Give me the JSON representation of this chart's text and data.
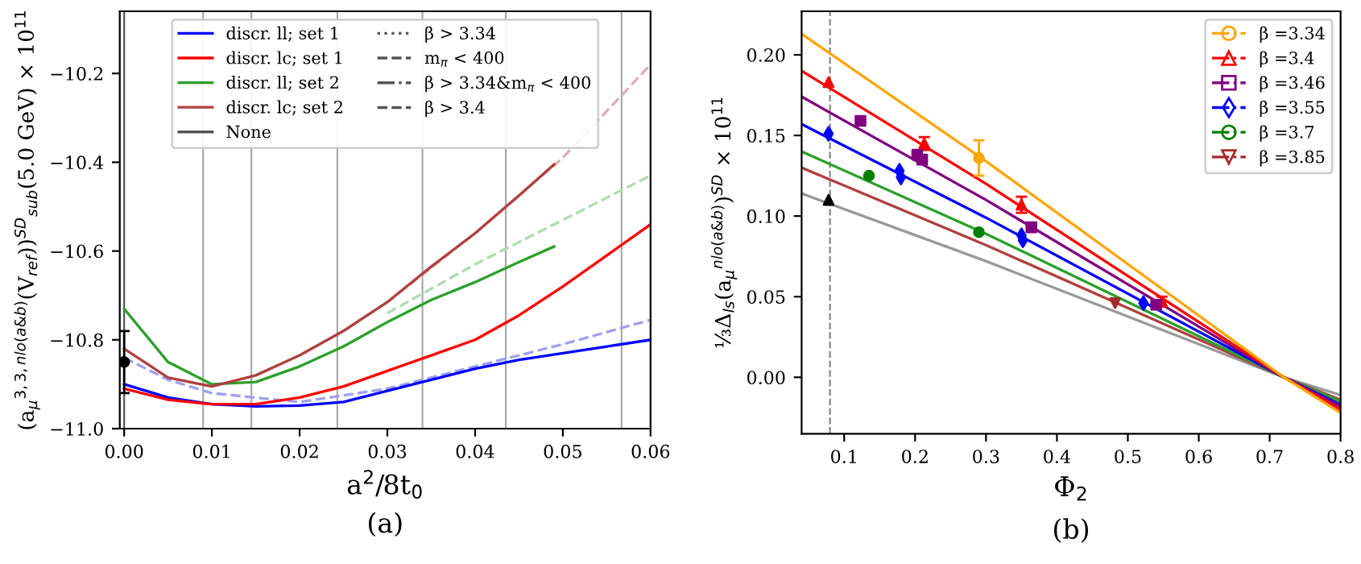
{
  "chart_data": [
    {
      "type": "line",
      "xlabel": "a$^{2}$/8t$_{0}$",
      "ylabel": "(a$_{μ}$$^{3,3,nlo(a&b)}$(V$_{ref}$))$^{SD}$$_{sub}$(5.0 GeV) × 10$^{11}$",
      "annotations": [
        "(a)"
      ],
      "xlim": [
        -0.0005,
        0.06
      ],
      "ylim": [
        -11.0,
        -10.06
      ],
      "xticks": [
        {
          "value": 0,
          "label": "0.00"
        },
        {
          "value": 0.01,
          "label": "0.01"
        },
        {
          "value": 0.02,
          "label": "0.02"
        },
        {
          "value": 0.03,
          "label": "0.03"
        },
        {
          "value": 0.04,
          "label": "0.04"
        },
        {
          "value": 0.05,
          "label": "0.05"
        },
        {
          "value": 0.06,
          "label": "0.06"
        }
      ],
      "yticks": [
        {
          "value": -11.0,
          "label": "−11.0"
        },
        {
          "value": -10.8,
          "label": "−10.8"
        },
        {
          "value": -10.6,
          "label": "−10.6"
        },
        {
          "value": -10.4,
          "label": "−10.4"
        },
        {
          "value": -10.2,
          "label": "−10.2"
        }
      ],
      "grid": false,
      "legend": "top",
      "ref_lines": [
        {
          "axis": "x",
          "value": 0,
          "color": "#555555"
        },
        {
          "axis": "x",
          "value": 0.009,
          "color": "#aaaaaa"
        },
        {
          "axis": "x",
          "value": 0.0145,
          "color": "#aaaaaa"
        },
        {
          "axis": "x",
          "value": 0.0243,
          "color": "#aaaaaa"
        },
        {
          "axis": "x",
          "value": 0.034,
          "color": "#aaaaaa"
        },
        {
          "axis": "x",
          "value": 0.0435,
          "color": "#aaaaaa"
        },
        {
          "axis": "x",
          "value": 0.0567,
          "color": "#aaaaaa"
        }
      ],
      "series": [
        {
          "type": "line",
          "color": "#a0a0f0",
          "line_style": "dashed",
          "x": [
            0,
            0.005,
            0.01,
            0.02,
            0.03,
            0.04,
            0.05,
            0.06
          ],
          "values": [
            -10.84,
            -10.89,
            -10.92,
            -10.94,
            -10.91,
            -10.86,
            -10.81,
            -10.755
          ]
        },
        {
          "type": "line",
          "color": "#b0dcb0",
          "line_style": "dashed",
          "x": [
            0.03,
            0.04,
            0.05,
            0.06
          ],
          "values": [
            -10.74,
            -10.63,
            -10.53,
            -10.43
          ]
        },
        {
          "type": "line",
          "color": "#dcb0b0",
          "line_style": "dashed",
          "x": [
            0.03,
            0.04,
            0.05,
            0.06
          ],
          "values": [
            -10.715,
            -10.56,
            -10.39,
            -10.18
          ]
        },
        {
          "type": "line",
          "name": "discr. ll; set 1",
          "color": "#0000ff",
          "line_style": "solid",
          "x": [
            0,
            0.005,
            0.01,
            0.015,
            0.02,
            0.025,
            0.03,
            0.035,
            0.04,
            0.045,
            0.05,
            0.055,
            0.06
          ],
          "values": [
            -10.9,
            -10.93,
            -10.945,
            -10.95,
            -10.948,
            -10.94,
            -10.915,
            -10.89,
            -10.865,
            -10.845,
            -10.83,
            -10.815,
            -10.8
          ]
        },
        {
          "type": "line",
          "name": "discr. lc; set 1",
          "color": "#ff0000",
          "line_style": "solid",
          "x": [
            0,
            0.005,
            0.01,
            0.015,
            0.02,
            0.025,
            0.03,
            0.035,
            0.04,
            0.045,
            0.05,
            0.055,
            0.06
          ],
          "values": [
            -10.91,
            -10.935,
            -10.945,
            -10.945,
            -10.93,
            -10.905,
            -10.87,
            -10.835,
            -10.8,
            -10.745,
            -10.68,
            -10.61,
            -10.54
          ]
        },
        {
          "type": "line",
          "name": "discr. ll; set 2",
          "color": "#2ca02c",
          "line_style": "solid",
          "x": [
            0,
            0.005,
            0.01,
            0.015,
            0.02,
            0.025,
            0.03,
            0.035,
            0.04,
            0.045,
            0.049
          ],
          "values": [
            -10.73,
            -10.85,
            -10.9,
            -10.895,
            -10.86,
            -10.815,
            -10.76,
            -10.71,
            -10.67,
            -10.625,
            -10.59
          ]
        },
        {
          "type": "line",
          "name": "discr. lc; set 2",
          "color": "#b04040",
          "line_style": "solid",
          "x": [
            0,
            0.005,
            0.01,
            0.015,
            0.02,
            0.025,
            0.03,
            0.035,
            0.04,
            0.045,
            0.049
          ],
          "values": [
            -10.82,
            -10.885,
            -10.905,
            -10.88,
            -10.835,
            -10.78,
            -10.715,
            -10.635,
            -10.56,
            -10.475,
            -10.405
          ]
        },
        {
          "name": "None",
          "color": "#555555",
          "line_style": "solid"
        },
        {
          "name": "β > 3.34",
          "color": "#555555",
          "line_style": "dotted"
        },
        {
          "name": "m$_{π}$ < 400",
          "color": "#555555",
          "line_style": "dashed"
        },
        {
          "name": "β > 3.34&m$_{π}$ < 400",
          "color": "#555555",
          "line_style": "dashdot"
        },
        {
          "name": "β > 3.4",
          "color": "#555555",
          "line_style": "dashed"
        },
        {
          "type": "scatter",
          "color": "#000000",
          "marker": "circle",
          "x": [
            0
          ],
          "values": [
            -10.85
          ],
          "errors": [
            [
              -10.92,
              -10.78
            ]
          ]
        }
      ]
    },
    {
      "type": "line",
      "xlabel": "Φ$_{2}$",
      "ylabel": "⅓Δ$_{ls}$(a$_{μ}$$^{nlo(a&b)}$)$^{SD}$ × 10$^{11}$",
      "annotations": [
        "(b)"
      ],
      "xlim": [
        0.04,
        0.8
      ],
      "ylim": [
        -0.035,
        0.227
      ],
      "xticks": [
        0.1,
        0.2,
        0.3,
        0.4,
        0.5,
        0.6,
        0.7,
        0.8
      ],
      "yticks": [
        {
          "value": 0,
          "label": "0.00"
        },
        {
          "value": 0.05,
          "label": "0.05"
        },
        {
          "value": 0.1,
          "label": "0.10"
        },
        {
          "value": 0.15,
          "label": "0.15"
        },
        {
          "value": 0.2,
          "label": "0.20"
        }
      ],
      "grid": false,
      "legend": "top right",
      "ref_lines": [
        {
          "axis": "x",
          "value": 0.08,
          "color": "#888888",
          "line_style": "dashed"
        }
      ],
      "series": [
        {
          "type": "line",
          "color": "#999999",
          "line_style": "solid",
          "x": [
            0.04,
            0.3,
            0.72,
            0.8
          ],
          "values": [
            0.114,
            0.072,
            0.0,
            -0.011
          ]
        },
        {
          "type": "line",
          "color": "#b04040",
          "line_style": "solid",
          "x": [
            0.04,
            0.3,
            0.72,
            0.8
          ],
          "values": [
            0.13,
            0.082,
            0.0,
            -0.014
          ]
        },
        {
          "type": "line",
          "color": "#2ca02c",
          "line_style": "solid",
          "x": [
            0.04,
            0.3,
            0.72,
            0.8
          ],
          "values": [
            0.14,
            0.089,
            0.0,
            -0.015
          ]
        },
        {
          "type": "line",
          "color": "#0000ff",
          "line_style": "solid",
          "x": [
            0.04,
            0.3,
            0.72,
            0.8
          ],
          "values": [
            0.157,
            0.099,
            0.0,
            -0.017
          ]
        },
        {
          "type": "line",
          "color": "#800080",
          "line_style": "solid",
          "x": [
            0.04,
            0.3,
            0.72,
            0.8
          ],
          "values": [
            0.174,
            0.11,
            0.0,
            -0.018
          ]
        },
        {
          "type": "line",
          "color": "#ff0000",
          "line_style": "solid",
          "x": [
            0.04,
            0.3,
            0.72,
            0.8
          ],
          "values": [
            0.19,
            0.12,
            0.0,
            -0.02
          ]
        },
        {
          "type": "line",
          "color": "#ffa500",
          "line_style": "solid",
          "x": [
            0.04,
            0.3,
            0.72,
            0.8
          ],
          "values": [
            0.213,
            0.134,
            0.0,
            -0.022
          ]
        },
        {
          "type": "scatter",
          "name": "β =3.34",
          "color": "#ffa500",
          "marker": "circle",
          "line_style": "dashdot",
          "x": [
            0.29
          ],
          "values": [
            0.136
          ],
          "errors": [
            0.011
          ]
        },
        {
          "type": "scatter",
          "name": "β =3.4",
          "color": "#ff0000",
          "marker": "triangle",
          "line_style": "dashdot",
          "x": [
            0.078,
            0.213,
            0.35,
            0.548
          ],
          "values": [
            0.183,
            0.145,
            0.107,
            0.047
          ],
          "errors": [
            null,
            0.004,
            0.005,
            0.003
          ]
        },
        {
          "type": "scatter",
          "name": "β =3.46",
          "color": "#800080",
          "marker": "square",
          "line_style": "dashdot",
          "x": [
            0.123,
            0.203,
            0.21,
            0.364,
            0.54
          ],
          "values": [
            0.159,
            0.138,
            0.135,
            0.093,
            0.045
          ]
        },
        {
          "type": "scatter",
          "name": "β =3.55",
          "color": "#0000ff",
          "marker": "diamond",
          "line_style": "dashdot",
          "x": [
            0.078,
            0.178,
            0.18,
            0.35,
            0.352,
            0.522
          ],
          "values": [
            0.151,
            0.128,
            0.124,
            0.088,
            0.085,
            0.046
          ]
        },
        {
          "type": "scatter",
          "name": "β =3.7",
          "color": "#008000",
          "marker": "circle",
          "line_style": "dashdot",
          "x": [
            0.135,
            0.29
          ],
          "values": [
            0.125,
            0.09
          ]
        },
        {
          "type": "scatter",
          "name": "β =3.85",
          "color": "#a52a2a",
          "marker": "triangle_down",
          "line_style": "dashdot",
          "x": [
            0.482
          ],
          "values": [
            0.046
          ]
        },
        {
          "type": "scatter",
          "color": "#000000",
          "marker": "triangle",
          "x": [
            0.078
          ],
          "values": [
            0.11
          ]
        }
      ]
    }
  ]
}
